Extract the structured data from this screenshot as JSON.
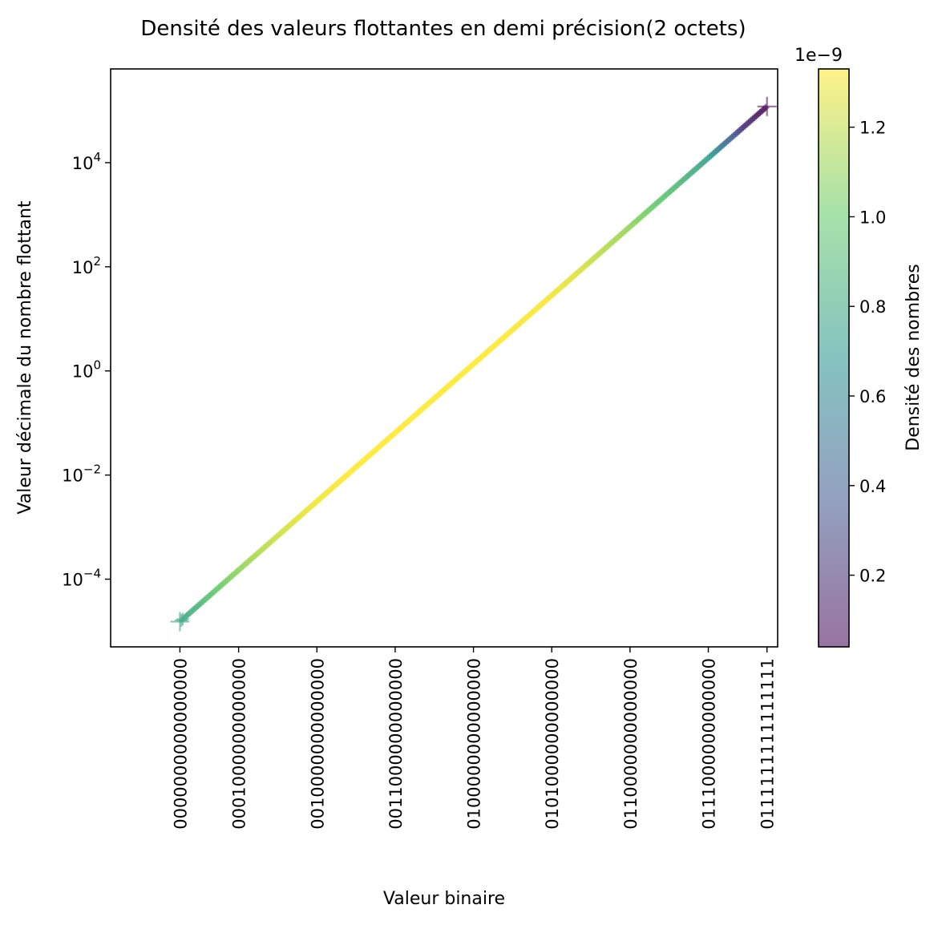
{
  "chart_data": {
    "type": "scatter",
    "title": "Densité des valeurs flottantes en demi précision(2 octets)",
    "xlabel": "Valeur binaire",
    "ylabel": "Valeur décimale du nombre flottant",
    "yscale": "log",
    "xlim": [
      -2600,
      32300
    ],
    "x_ticks": [
      {
        "value": 1024,
        "label": "0000000000000000"
      },
      {
        "value": 4096,
        "label": "0001000000000000"
      },
      {
        "value": 8192,
        "label": "0010000000000000"
      },
      {
        "value": 12288,
        "label": "0011000000000000"
      },
      {
        "value": 16384,
        "label": "0100000000000000"
      },
      {
        "value": 20480,
        "label": "0101000000000000"
      },
      {
        "value": 24576,
        "label": "0110000000000000"
      },
      {
        "value": 28672,
        "label": "0111000000000000"
      },
      {
        "value": 31743,
        "label": "0111111111111111"
      }
    ],
    "y_range_exp": [
      -5.3,
      5.8
    ],
    "y_ticks": [
      {
        "exp": -4,
        "base": "10",
        "power": "−4"
      },
      {
        "exp": -2,
        "base": "10",
        "power": "−2"
      },
      {
        "exp": 0,
        "base": "10",
        "power": "0"
      },
      {
        "exp": 2,
        "base": "10",
        "power": "2"
      },
      {
        "exp": 4,
        "base": "10",
        "power": "4"
      }
    ],
    "marker": "+",
    "alpha": 0.55,
    "series": [
      {
        "x_range": [
          1024,
          31743
        ],
        "y_range": [
          1.53e-05,
          120000
        ],
        "density_range": [
          0.04,
          1.33
        ],
        "density_profile": [
          {
            "x": 1024,
            "density": 0.78
          },
          {
            "x": 1800,
            "density": 0.85
          },
          {
            "x": 3000,
            "density": 1.0
          },
          {
            "x": 4500,
            "density": 1.12
          },
          {
            "x": 6000,
            "density": 1.22
          },
          {
            "x": 8000,
            "density": 1.3
          },
          {
            "x": 10000,
            "density": 1.33
          },
          {
            "x": 16384,
            "density": 1.33
          },
          {
            "x": 20000,
            "density": 1.32
          },
          {
            "x": 22000,
            "density": 1.25
          },
          {
            "x": 24576,
            "density": 1.1
          },
          {
            "x": 27000,
            "density": 0.9
          },
          {
            "x": 28672,
            "density": 0.75
          },
          {
            "x": 29500,
            "density": 0.5
          },
          {
            "x": 30500,
            "density": 0.2
          },
          {
            "x": 31743,
            "density": 0.04
          }
        ]
      }
    ],
    "colorbar": {
      "label": "Densité des nombres",
      "offset": "1e−9",
      "range": [
        0.04,
        1.33
      ],
      "ticks": [
        "0.2",
        "0.4",
        "0.6",
        "0.8",
        "1.0",
        "1.2"
      ],
      "tick_values": [
        0.2,
        0.4,
        0.6,
        0.8,
        1.0,
        1.2
      ],
      "colormap": "viridis",
      "colors": [
        "#440154",
        "#3b528b",
        "#21918c",
        "#5ec962",
        "#fde725"
      ]
    },
    "grid": false,
    "legend": "none"
  }
}
